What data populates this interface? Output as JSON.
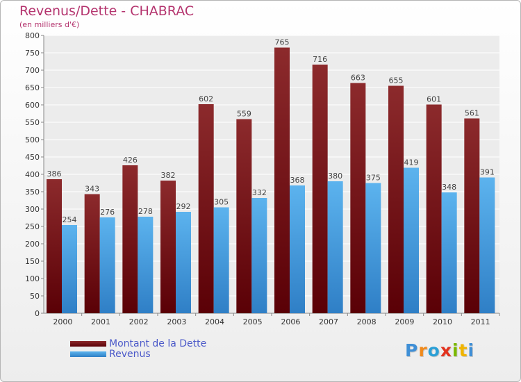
{
  "chart_data": {
    "type": "bar",
    "title": "Revenus/Dette - CHABRAC",
    "subtitle": "(en milliers d'€)",
    "xlabel": "",
    "ylabel": "",
    "ylim": [
      0,
      800
    ],
    "yticks": [
      0,
      50,
      100,
      150,
      200,
      250,
      300,
      350,
      400,
      450,
      500,
      550,
      600,
      650,
      700,
      750,
      800
    ],
    "grid": true,
    "legend_position": "bottom-left",
    "categories": [
      "2000",
      "2001",
      "2002",
      "2003",
      "2004",
      "2005",
      "2006",
      "2007",
      "2008",
      "2009",
      "2010",
      "2011"
    ],
    "series": [
      {
        "name": "Montant de la Dette",
        "color": "#7a1518",
        "values": [
          386,
          343,
          426,
          382,
          602,
          559,
          765,
          716,
          663,
          655,
          601,
          561
        ]
      },
      {
        "name": "Revenus",
        "color": "#4aa3e6",
        "values": [
          254,
          276,
          278,
          292,
          305,
          332,
          368,
          380,
          375,
          419,
          348,
          391
        ]
      }
    ]
  },
  "brand": {
    "letters": [
      "P",
      "r",
      "o",
      "x",
      "i",
      "t",
      "i"
    ],
    "colors": [
      "#3f8fd6",
      "#f08a1c",
      "#2a9fd6",
      "#e2321e",
      "#7ab800",
      "#f0b400",
      "#3f8fd6"
    ]
  }
}
